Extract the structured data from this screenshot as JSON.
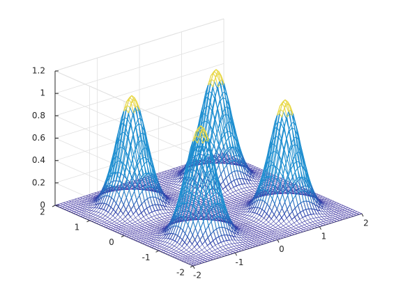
{
  "chart_data": {
    "type": "mesh",
    "title": "",
    "xlabel": "",
    "ylabel": "",
    "zlabel": "",
    "xlim": [
      -2,
      2
    ],
    "ylim": [
      -2,
      2
    ],
    "zlim": [
      0,
      1.2
    ],
    "x_ticks": [
      "-2",
      "-1",
      "0",
      "1",
      "2"
    ],
    "y_ticks": [
      "-2",
      "-1",
      "0",
      "1",
      "2"
    ],
    "z_ticks": [
      "0",
      "0.2",
      "0.4",
      "0.6",
      "0.8",
      "1",
      "1.2"
    ],
    "grid": true,
    "box": true,
    "peaks": [
      {
        "x": -1,
        "y": 1,
        "height": 1.0
      },
      {
        "x": 1,
        "y": 1,
        "height": 1.0
      },
      {
        "x": -1,
        "y": -1,
        "height": 1.0
      },
      {
        "x": 1,
        "y": -1,
        "height": 1.0
      }
    ],
    "colors": {
      "low": "#3b2fa0",
      "high": "#1f8fd0",
      "top": "#e8d84a",
      "axis": "#262626",
      "grid": "#e0e0e0"
    }
  }
}
